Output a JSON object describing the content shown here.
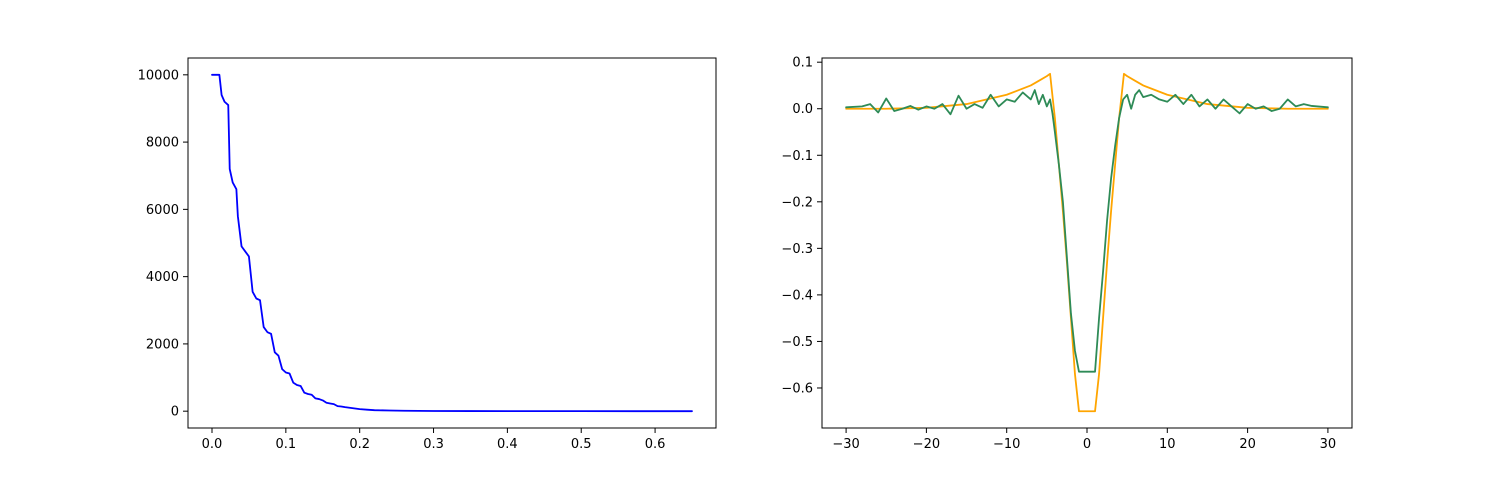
{
  "chart_data": [
    {
      "type": "line",
      "title": "",
      "xlabel": "",
      "ylabel": "",
      "xlim": [
        -0.0325,
        0.6825
      ],
      "ylim": [
        -500,
        10500
      ],
      "xticks": [
        0.0,
        0.1,
        0.2,
        0.3,
        0.4,
        0.5,
        0.6
      ],
      "xtick_labels": [
        "0.0",
        "0.1",
        "0.2",
        "0.3",
        "0.4",
        "0.5",
        "0.6"
      ],
      "yticks": [
        0,
        2000,
        4000,
        6000,
        8000,
        10000
      ],
      "ytick_labels": [
        "0",
        "2000",
        "4000",
        "6000",
        "8000",
        "10000"
      ],
      "grid": false,
      "series": [
        {
          "color": "#0000ff",
          "x": [
            0.0,
            0.01,
            0.013,
            0.017,
            0.022,
            0.024,
            0.028,
            0.033,
            0.035,
            0.04,
            0.045,
            0.05,
            0.055,
            0.06,
            0.065,
            0.07,
            0.075,
            0.08,
            0.085,
            0.09,
            0.095,
            0.1,
            0.105,
            0.11,
            0.115,
            0.12,
            0.125,
            0.13,
            0.135,
            0.14,
            0.145,
            0.15,
            0.155,
            0.16,
            0.165,
            0.17,
            0.175,
            0.18,
            0.19,
            0.2,
            0.21,
            0.22,
            0.24,
            0.26,
            0.28,
            0.3,
            0.35,
            0.4,
            0.5,
            0.6,
            0.65
          ],
          "y": [
            10000,
            10000,
            9400,
            9200,
            9100,
            7200,
            6800,
            6600,
            5800,
            4900,
            4750,
            4600,
            3550,
            3350,
            3300,
            2500,
            2350,
            2300,
            1750,
            1650,
            1250,
            1150,
            1120,
            850,
            780,
            750,
            550,
            510,
            490,
            380,
            360,
            320,
            250,
            230,
            210,
            150,
            140,
            120,
            90,
            60,
            45,
            30,
            20,
            12,
            8,
            5,
            3,
            2,
            1,
            0,
            0
          ]
        }
      ]
    },
    {
      "type": "line",
      "title": "",
      "xlabel": "",
      "ylabel": "",
      "xlim": [
        -33,
        33
      ],
      "ylim": [
        -0.686,
        0.109
      ],
      "xticks": [
        -30,
        -20,
        -10,
        0,
        10,
        20,
        30
      ],
      "xtick_labels": [
        "−30",
        "−20",
        "−10",
        "0",
        "10",
        "20",
        "30"
      ],
      "yticks": [
        0.1,
        0.0,
        -0.1,
        -0.2,
        -0.3,
        -0.4,
        -0.5,
        -0.6
      ],
      "ytick_labels": [
        "0.1",
        "0.0",
        "−0.1",
        "−0.2",
        "−0.3",
        "−0.4",
        "−0.5",
        "−0.6"
      ],
      "grid": false,
      "series": [
        {
          "color": "#ffa500",
          "x": [
            -30,
            -25,
            -20,
            -15,
            -10,
            -7,
            -6,
            -5,
            -4.6,
            -4,
            -3.5,
            -3,
            -2.5,
            -2,
            -1.5,
            -1,
            1,
            1.5,
            2,
            2.5,
            3,
            3.5,
            4,
            4.6,
            5,
            6,
            7,
            10,
            15,
            20,
            25,
            30
          ],
          "y": [
            0.0,
            0.0,
            0.002,
            0.01,
            0.03,
            0.05,
            0.06,
            0.07,
            0.075,
            -0.02,
            -0.12,
            -0.22,
            -0.33,
            -0.45,
            -0.57,
            -0.65,
            -0.65,
            -0.57,
            -0.45,
            -0.33,
            -0.22,
            -0.12,
            -0.02,
            0.075,
            0.07,
            0.06,
            0.05,
            0.03,
            0.01,
            0.002,
            0.0,
            0.0
          ]
        },
        {
          "color": "#2e8b57",
          "x": [
            -30,
            -28,
            -27,
            -26,
            -25,
            -24,
            -23,
            -22,
            -21,
            -20,
            -19,
            -18,
            -17,
            -16,
            -15,
            -14,
            -13,
            -12,
            -11,
            -10,
            -9,
            -8,
            -7,
            -6.5,
            -6,
            -5.5,
            -5,
            -4.6,
            -4.3,
            -4,
            -3.5,
            -3,
            -2.5,
            -2,
            -1.5,
            -1,
            1,
            1.5,
            2,
            2.5,
            3,
            3.5,
            4,
            4.5,
            5,
            5.5,
            6,
            6.5,
            7,
            8,
            9,
            10,
            11,
            12,
            13,
            14,
            15,
            16,
            17,
            18,
            19,
            20,
            21,
            22,
            23,
            24,
            25,
            26,
            27,
            28,
            30
          ],
          "y": [
            0.003,
            0.005,
            0.01,
            -0.008,
            0.022,
            -0.005,
            0.0,
            0.006,
            -0.002,
            0.005,
            0.0,
            0.01,
            -0.012,
            0.028,
            0.0,
            0.01,
            0.002,
            0.03,
            0.005,
            0.02,
            0.015,
            0.035,
            0.02,
            0.04,
            0.01,
            0.03,
            0.005,
            0.02,
            -0.01,
            -0.05,
            -0.12,
            -0.2,
            -0.32,
            -0.44,
            -0.52,
            -0.565,
            -0.565,
            -0.45,
            -0.35,
            -0.24,
            -0.15,
            -0.08,
            -0.02,
            0.02,
            0.03,
            0.0,
            0.03,
            0.04,
            0.025,
            0.03,
            0.02,
            0.015,
            0.03,
            0.01,
            0.03,
            0.005,
            0.02,
            0.0,
            0.02,
            0.005,
            -0.01,
            0.01,
            0.0,
            0.005,
            -0.005,
            0.0,
            0.02,
            0.005,
            0.01,
            0.006,
            0.003
          ]
        }
      ]
    }
  ]
}
